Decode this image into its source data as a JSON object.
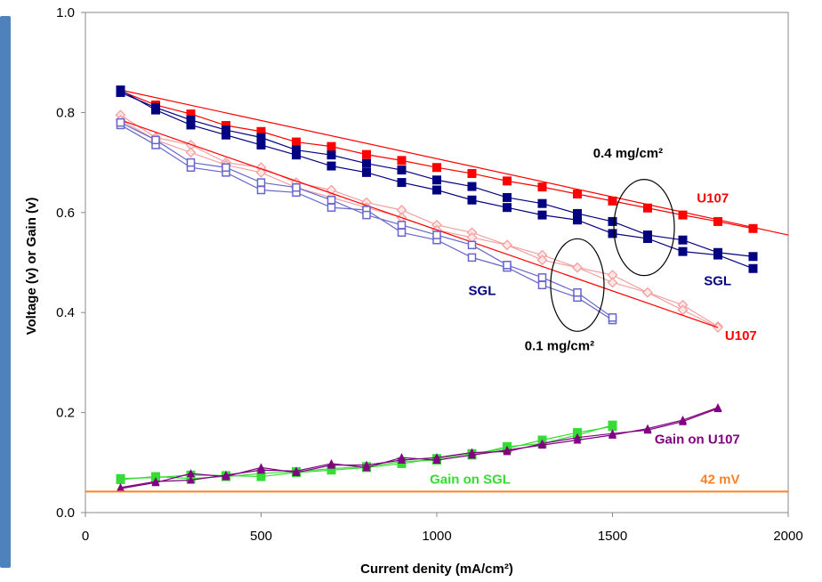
{
  "chart_data": {
    "type": "line",
    "xlabel": "Current denity (mA/cm²)",
    "ylabel": "Voltage (v) or Gain (v)",
    "xlim": [
      0,
      2000
    ],
    "ylim": [
      0,
      1.0
    ],
    "xticks": [
      "0",
      "500",
      "1000",
      "1500",
      "2000"
    ],
    "yticks": [
      "0.0",
      "0.2",
      "0.4",
      "0.6",
      "0.8",
      "1.0"
    ],
    "grid": false,
    "legend": "none",
    "colors": {
      "u107_high": "#ff0000",
      "sgl_high": "#000080",
      "u107_low": "#f4a0a0",
      "sgl_low": "#6666cc",
      "gain_sgl": "#33dd33",
      "gain_u107": "#800080",
      "ref_line": "#ff7f27"
    },
    "series": [
      {
        "key": "u107_high",
        "marker": "square-filled",
        "x": [
          100,
          200,
          300,
          400,
          500,
          600,
          700,
          800,
          900,
          1000,
          1100,
          1200,
          1300,
          1400,
          1500,
          1600,
          1700,
          1800,
          1900
        ],
        "y": [
          0.843,
          0.815,
          0.797,
          0.774,
          0.762,
          0.741,
          0.732,
          0.716,
          0.704,
          0.69,
          0.678,
          0.663,
          0.651,
          0.637,
          0.623,
          0.609,
          0.595,
          0.582,
          0.568
        ]
      },
      {
        "key": "u107_high_fit",
        "marker": "none",
        "x": [
          100,
          2000
        ],
        "y": [
          0.845,
          0.555
        ]
      },
      {
        "key": "sgl_high",
        "marker": "square-filled",
        "x": [
          100,
          200,
          300,
          400,
          500,
          600,
          700,
          800,
          900,
          1000,
          1100,
          1200,
          1300,
          1400,
          1500,
          1600,
          1700,
          1800,
          1900
        ],
        "y": [
          0.845,
          0.805,
          0.775,
          0.755,
          0.735,
          0.715,
          0.693,
          0.68,
          0.66,
          0.645,
          0.625,
          0.61,
          0.595,
          0.585,
          0.558,
          0.548,
          0.522,
          0.515,
          0.488
        ]
      },
      {
        "key": "sgl_high_2",
        "marker": "square-filled",
        "x": [
          100,
          200,
          300,
          400,
          500,
          600,
          700,
          800,
          900,
          1000,
          1100,
          1200,
          1300,
          1400,
          1500,
          1600,
          1700,
          1800,
          1900
        ],
        "y": [
          0.84,
          0.81,
          0.785,
          0.765,
          0.75,
          0.725,
          0.715,
          0.698,
          0.685,
          0.665,
          0.652,
          0.63,
          0.618,
          0.598,
          0.582,
          0.555,
          0.545,
          0.52,
          0.512
        ]
      },
      {
        "key": "u107_low",
        "marker": "diamond-open",
        "x": [
          100,
          200,
          300,
          400,
          500,
          600,
          700,
          800,
          900,
          1000,
          1100,
          1200,
          1300,
          1400,
          1500,
          1600,
          1700,
          1800
        ],
        "y": [
          0.795,
          0.75,
          0.735,
          0.7,
          0.69,
          0.66,
          0.645,
          0.62,
          0.605,
          0.575,
          0.56,
          0.535,
          0.515,
          0.49,
          0.475,
          0.44,
          0.415,
          0.372
        ]
      },
      {
        "key": "u107_low_2",
        "marker": "diamond-open",
        "x": [
          100,
          200,
          300,
          400,
          500,
          600,
          700,
          800,
          900,
          1000,
          1100,
          1200,
          1300,
          1400,
          1500,
          1600,
          1700,
          1800
        ],
        "y": [
          0.785,
          0.745,
          0.72,
          0.695,
          0.68,
          0.65,
          0.63,
          0.61,
          0.59,
          0.565,
          0.55,
          0.535,
          0.505,
          0.49,
          0.46,
          0.44,
          0.405,
          0.37
        ]
      },
      {
        "key": "u107_low_fit",
        "marker": "none",
        "x": [
          100,
          1800
        ],
        "y": [
          0.785,
          0.37
        ]
      },
      {
        "key": "sgl_low",
        "marker": "square-open",
        "x": [
          100,
          200,
          300,
          400,
          500,
          600,
          700,
          800,
          900,
          1000,
          1100,
          1200,
          1300,
          1400,
          1500
        ],
        "y": [
          0.775,
          0.735,
          0.69,
          0.68,
          0.645,
          0.64,
          0.61,
          0.605,
          0.56,
          0.545,
          0.51,
          0.49,
          0.455,
          0.43,
          0.385
        ]
      },
      {
        "key": "sgl_low_2",
        "marker": "square-open",
        "x": [
          100,
          200,
          300,
          400,
          500,
          600,
          700,
          800,
          900,
          1000,
          1100,
          1200,
          1300,
          1400,
          1500
        ],
        "y": [
          0.78,
          0.745,
          0.7,
          0.69,
          0.66,
          0.65,
          0.625,
          0.595,
          0.575,
          0.555,
          0.535,
          0.495,
          0.47,
          0.44,
          0.39
        ]
      },
      {
        "key": "gain_sgl",
        "marker": "square-filled",
        "x": [
          100,
          200,
          300,
          400,
          500,
          600,
          700,
          800,
          900,
          1000,
          1100,
          1200,
          1300,
          1400,
          1500
        ],
        "y": [
          0.068,
          0.07,
          0.075,
          0.074,
          0.072,
          0.08,
          0.085,
          0.09,
          0.098,
          0.108,
          0.118,
          0.128,
          0.145,
          0.16,
          0.172
        ]
      },
      {
        "key": "gain_sgl_2",
        "marker": "square-filled",
        "x": [
          100,
          200,
          300,
          400,
          500,
          600,
          700,
          800,
          900,
          1000,
          1100,
          1200,
          1300,
          1400,
          1500
        ],
        "y": [
          0.066,
          0.072,
          0.068,
          0.072,
          0.078,
          0.082,
          0.088,
          0.092,
          0.102,
          0.105,
          0.115,
          0.132,
          0.138,
          0.155,
          0.175
        ]
      },
      {
        "key": "gain_u107",
        "marker": "triangle-filled",
        "x": [
          100,
          200,
          300,
          400,
          500,
          600,
          700,
          800,
          900,
          1000,
          1100,
          1200,
          1300,
          1400,
          1500,
          1600,
          1700,
          1800
        ],
        "y": [
          0.05,
          0.062,
          0.065,
          0.075,
          0.085,
          0.083,
          0.098,
          0.09,
          0.11,
          0.105,
          0.115,
          0.125,
          0.135,
          0.145,
          0.155,
          0.168,
          0.185,
          0.21
        ]
      },
      {
        "key": "gain_u107_2",
        "marker": "triangle-filled",
        "x": [
          100,
          200,
          300,
          400,
          500,
          600,
          700,
          800,
          900,
          1000,
          1100,
          1200,
          1300,
          1400,
          1500,
          1600,
          1700,
          1800
        ],
        "y": [
          0.048,
          0.06,
          0.078,
          0.072,
          0.09,
          0.08,
          0.095,
          0.095,
          0.105,
          0.11,
          0.12,
          0.122,
          0.138,
          0.15,
          0.158,
          0.165,
          0.182,
          0.208
        ]
      }
    ],
    "reference_line": {
      "y": 0.042,
      "label": "42 mV"
    },
    "annotations": {
      "label_04": {
        "text": "0.4 mg/cm²"
      },
      "label_01": {
        "text": "0.1 mg/cm²"
      },
      "u107_high": {
        "text": "U107"
      },
      "sgl_high": {
        "text": "SGL"
      },
      "sgl_low": {
        "text": "SGL"
      },
      "u107_low": {
        "text": "U107"
      },
      "gain_u107": {
        "text": "Gain on U107"
      },
      "gain_sgl": {
        "text": "Gain on SGL"
      }
    }
  }
}
